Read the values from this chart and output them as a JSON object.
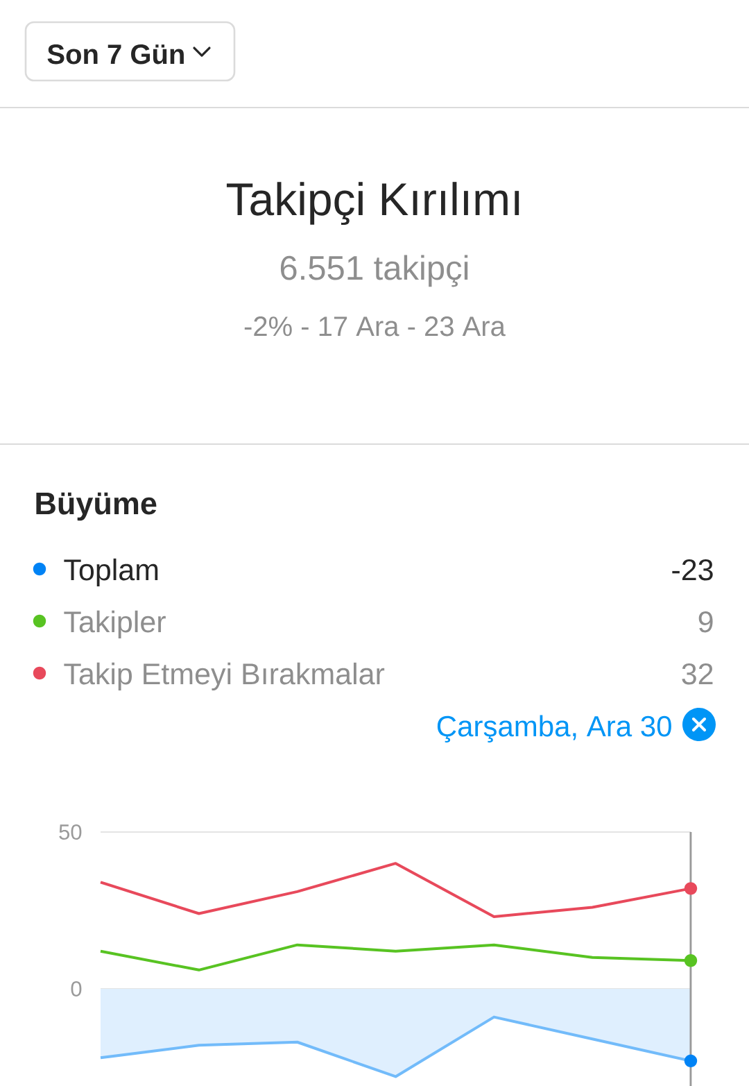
{
  "chart_data": {
    "type": "line",
    "title": "Takipçi Kırılımı",
    "subtitle": "6.551 takipçi",
    "annotations": [
      "Son 7 Gün",
      "-2% - 17 Ara - 23 Ara",
      "Büyüme",
      "-23",
      "9",
      "32",
      "Çarşamba, Ara 30"
    ],
    "categories": [
      null,
      null,
      null,
      null,
      null,
      null,
      null
    ],
    "series": [
      {
        "name": "Toplam",
        "type": "area",
        "color": "#72bbfa",
        "values": [
          -22,
          -18,
          -17,
          -28,
          -9,
          -16,
          -23
        ]
      },
      {
        "name": "Takipler",
        "color": "#58c322",
        "values": [
          12,
          6,
          14,
          12,
          14,
          10,
          9
        ]
      },
      {
        "name": "Takip Etmeyi Bırakmalar",
        "color": "#e8495b",
        "values": [
          34,
          24,
          31,
          40,
          23,
          26,
          32
        ]
      }
    ],
    "ylim": [
      -31,
      50
    ],
    "yticks": [
      0,
      50
    ],
    "grid": "y",
    "legend": "top",
    "tick_labels": "y"
  }
}
